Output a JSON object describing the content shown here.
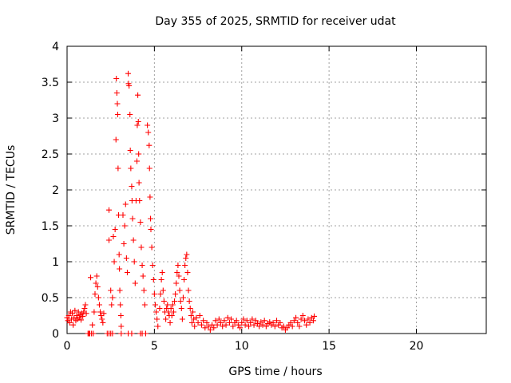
{
  "chart_data": {
    "type": "scatter",
    "title": "Day 355 of 2025, SRMTID for receiver udat",
    "xlabel": "GPS time / hours",
    "ylabel": "SRMTID / TECUs",
    "xlim": [
      0,
      24
    ],
    "ylim": [
      0,
      4
    ],
    "grid": true,
    "x_ticks": [
      0,
      5,
      10,
      15,
      20
    ],
    "y_ticks": [
      0,
      0.5,
      1,
      1.5,
      2,
      2.5,
      3,
      3.5,
      4
    ],
    "x_tick_labels": [
      "0",
      "5",
      "10",
      "15",
      "20"
    ],
    "y_tick_labels": [
      "0",
      "0.5",
      "1",
      "1.5",
      "2",
      "2.5",
      "3",
      "3.5",
      "4"
    ],
    "marker": "+",
    "marker_color": "#ff0000",
    "series": [
      {
        "name": "SRMTID",
        "points": [
          [
            0.0,
            0.22
          ],
          [
            0.05,
            0.18
          ],
          [
            0.1,
            0.25
          ],
          [
            0.15,
            0.15
          ],
          [
            0.2,
            0.3
          ],
          [
            0.25,
            0.2
          ],
          [
            0.3,
            0.28
          ],
          [
            0.35,
            0.12
          ],
          [
            0.4,
            0.22
          ],
          [
            0.45,
            0.32
          ],
          [
            0.5,
            0.18
          ],
          [
            0.55,
            0.25
          ],
          [
            0.6,
            0.2
          ],
          [
            0.65,
            0.3
          ],
          [
            0.7,
            0.22
          ],
          [
            0.75,
            0.26
          ],
          [
            0.8,
            0.19
          ],
          [
            0.85,
            0.28
          ],
          [
            0.9,
            0.24
          ],
          [
            0.95,
            0.3
          ],
          [
            1.0,
            0.35
          ],
          [
            1.05,
            0.4
          ],
          [
            1.1,
            0.28
          ],
          [
            1.2,
            0.0
          ],
          [
            1.25,
            0.0
          ],
          [
            1.3,
            0.0
          ],
          [
            1.4,
            0.0
          ],
          [
            1.5,
            0.0
          ],
          [
            1.35,
            0.78
          ],
          [
            1.45,
            0.12
          ],
          [
            1.55,
            0.3
          ],
          [
            1.6,
            0.55
          ],
          [
            1.65,
            0.7
          ],
          [
            1.7,
            0.8
          ],
          [
            1.75,
            0.65
          ],
          [
            1.8,
            0.5
          ],
          [
            1.85,
            0.4
          ],
          [
            1.9,
            0.3
          ],
          [
            1.95,
            0.25
          ],
          [
            2.0,
            0.2
          ],
          [
            2.05,
            0.15
          ],
          [
            2.1,
            0.28
          ],
          [
            2.3,
            0.0
          ],
          [
            2.4,
            0.0
          ],
          [
            2.5,
            0.0
          ],
          [
            2.6,
            0.0
          ],
          [
            2.4,
            1.72
          ],
          [
            2.4,
            1.3
          ],
          [
            2.5,
            0.6
          ],
          [
            2.55,
            0.4
          ],
          [
            2.6,
            0.5
          ],
          [
            2.65,
            1.35
          ],
          [
            2.7,
            1.0
          ],
          [
            2.75,
            1.45
          ],
          [
            2.8,
            2.7
          ],
          [
            2.82,
            3.55
          ],
          [
            2.85,
            3.35
          ],
          [
            2.88,
            3.2
          ],
          [
            2.9,
            3.05
          ],
          [
            2.92,
            2.3
          ],
          [
            2.95,
            1.65
          ],
          [
            2.98,
            1.1
          ],
          [
            3.0,
            0.9
          ],
          [
            3.02,
            0.6
          ],
          [
            3.05,
            0.4
          ],
          [
            3.08,
            0.25
          ],
          [
            3.1,
            0.1
          ],
          [
            3.2,
            1.65
          ],
          [
            3.25,
            1.25
          ],
          [
            3.3,
            1.5
          ],
          [
            3.35,
            1.8
          ],
          [
            3.4,
            1.05
          ],
          [
            3.45,
            0.85
          ],
          [
            3.5,
            3.62
          ],
          [
            3.52,
            3.48
          ],
          [
            3.55,
            3.45
          ],
          [
            3.6,
            3.05
          ],
          [
            3.62,
            2.55
          ],
          [
            3.65,
            2.3
          ],
          [
            3.7,
            2.05
          ],
          [
            3.72,
            1.85
          ],
          [
            3.75,
            1.6
          ],
          [
            3.8,
            1.3
          ],
          [
            3.85,
            1.0
          ],
          [
            3.9,
            0.7
          ],
          [
            3.1,
            0.0
          ],
          [
            3.5,
            0.0
          ],
          [
            3.7,
            0.0
          ],
          [
            3.95,
            1.85
          ],
          [
            4.0,
            2.4
          ],
          [
            4.02,
            2.9
          ],
          [
            4.05,
            3.32
          ],
          [
            4.08,
            2.95
          ],
          [
            4.1,
            2.5
          ],
          [
            4.12,
            2.1
          ],
          [
            4.15,
            1.85
          ],
          [
            4.2,
            1.55
          ],
          [
            4.25,
            1.2
          ],
          [
            4.3,
            0.95
          ],
          [
            4.35,
            0.8
          ],
          [
            4.4,
            0.6
          ],
          [
            4.45,
            0.4
          ],
          [
            4.2,
            0.0
          ],
          [
            4.3,
            0.0
          ],
          [
            4.5,
            0.0
          ],
          [
            4.6,
            2.9
          ],
          [
            4.65,
            2.8
          ],
          [
            4.7,
            2.62
          ],
          [
            4.72,
            2.3
          ],
          [
            4.75,
            1.9
          ],
          [
            4.78,
            1.6
          ],
          [
            4.8,
            1.45
          ],
          [
            4.85,
            1.2
          ],
          [
            4.9,
            0.95
          ],
          [
            4.95,
            0.75
          ],
          [
            5.0,
            0.55
          ],
          [
            5.05,
            0.4
          ],
          [
            5.1,
            0.3
          ],
          [
            5.15,
            0.2
          ],
          [
            5.2,
            0.1
          ],
          [
            5.3,
            0.35
          ],
          [
            5.35,
            0.55
          ],
          [
            5.4,
            0.75
          ],
          [
            5.45,
            0.85
          ],
          [
            5.5,
            0.6
          ],
          [
            5.55,
            0.45
          ],
          [
            5.6,
            0.3
          ],
          [
            5.65,
            0.2
          ],
          [
            5.7,
            0.35
          ],
          [
            5.75,
            0.4
          ],
          [
            5.8,
            0.3
          ],
          [
            5.85,
            0.25
          ],
          [
            5.9,
            0.15
          ],
          [
            5.95,
            0.35
          ],
          [
            6.0,
            0.25
          ],
          [
            6.05,
            0.4
          ],
          [
            6.1,
            0.3
          ],
          [
            6.15,
            0.45
          ],
          [
            6.2,
            0.55
          ],
          [
            6.25,
            0.7
          ],
          [
            6.3,
            0.85
          ],
          [
            6.35,
            0.95
          ],
          [
            6.4,
            0.8
          ],
          [
            6.45,
            0.6
          ],
          [
            6.5,
            0.45
          ],
          [
            6.55,
            0.35
          ],
          [
            6.6,
            0.2
          ],
          [
            6.65,
            0.5
          ],
          [
            6.7,
            0.75
          ],
          [
            6.75,
            0.95
          ],
          [
            6.8,
            1.05
          ],
          [
            6.85,
            1.1
          ],
          [
            6.9,
            0.85
          ],
          [
            6.95,
            0.6
          ],
          [
            7.0,
            0.45
          ],
          [
            7.05,
            0.35
          ],
          [
            7.1,
            0.25
          ],
          [
            7.15,
            0.15
          ],
          [
            7.2,
            0.3
          ],
          [
            7.25,
            0.2
          ],
          [
            7.3,
            0.1
          ],
          [
            7.4,
            0.22
          ],
          [
            7.5,
            0.15
          ],
          [
            7.6,
            0.25
          ],
          [
            7.7,
            0.12
          ],
          [
            7.8,
            0.18
          ],
          [
            7.9,
            0.08
          ],
          [
            8.0,
            0.15
          ],
          [
            8.1,
            0.1
          ],
          [
            8.2,
            0.05
          ],
          [
            8.3,
            0.12
          ],
          [
            8.4,
            0.08
          ],
          [
            8.5,
            0.18
          ],
          [
            8.6,
            0.12
          ],
          [
            8.7,
            0.2
          ],
          [
            8.8,
            0.15
          ],
          [
            8.9,
            0.1
          ],
          [
            9.0,
            0.18
          ],
          [
            9.1,
            0.12
          ],
          [
            9.2,
            0.22
          ],
          [
            9.3,
            0.15
          ],
          [
            9.4,
            0.2
          ],
          [
            9.5,
            0.1
          ],
          [
            9.6,
            0.15
          ],
          [
            9.7,
            0.18
          ],
          [
            9.8,
            0.12
          ],
          [
            9.9,
            0.08
          ],
          [
            10.0,
            0.15
          ],
          [
            10.1,
            0.2
          ],
          [
            10.2,
            0.12
          ],
          [
            10.3,
            0.18
          ],
          [
            10.4,
            0.1
          ],
          [
            10.5,
            0.15
          ],
          [
            10.6,
            0.2
          ],
          [
            10.7,
            0.12
          ],
          [
            10.8,
            0.18
          ],
          [
            10.9,
            0.14
          ],
          [
            11.0,
            0.1
          ],
          [
            11.1,
            0.16
          ],
          [
            11.2,
            0.12
          ],
          [
            11.3,
            0.18
          ],
          [
            11.4,
            0.1
          ],
          [
            11.5,
            0.14
          ],
          [
            11.6,
            0.16
          ],
          [
            11.7,
            0.12
          ],
          [
            11.8,
            0.15
          ],
          [
            11.9,
            0.1
          ],
          [
            12.0,
            0.18
          ],
          [
            12.1,
            0.12
          ],
          [
            12.2,
            0.15
          ],
          [
            12.3,
            0.08
          ],
          [
            12.4,
            0.1
          ],
          [
            12.5,
            0.05
          ],
          [
            12.6,
            0.08
          ],
          [
            12.7,
            0.12
          ],
          [
            12.8,
            0.15
          ],
          [
            12.9,
            0.1
          ],
          [
            13.0,
            0.18
          ],
          [
            13.1,
            0.22
          ],
          [
            13.2,
            0.15
          ],
          [
            13.3,
            0.1
          ],
          [
            13.4,
            0.2
          ],
          [
            13.5,
            0.25
          ],
          [
            13.6,
            0.18
          ],
          [
            13.7,
            0.12
          ],
          [
            13.8,
            0.2
          ],
          [
            13.9,
            0.15
          ],
          [
            14.0,
            0.22
          ],
          [
            14.1,
            0.18
          ],
          [
            14.15,
            0.24
          ]
        ]
      }
    ]
  }
}
